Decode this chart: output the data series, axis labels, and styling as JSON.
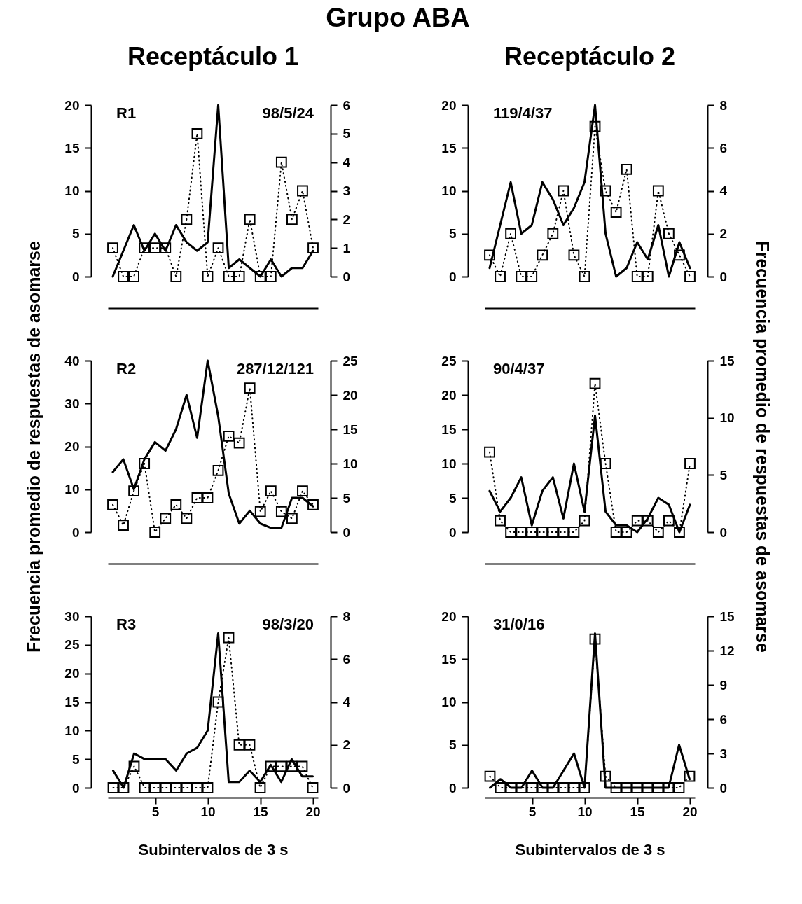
{
  "chart_data": [
    {
      "type": "line",
      "title": "Grupo ABA",
      "subtitle": "Receptáculo 1",
      "annotations": [
        "R1",
        "98/5/24"
      ],
      "x": [
        1,
        2,
        3,
        4,
        5,
        6,
        7,
        8,
        9,
        10,
        11,
        12,
        13,
        14,
        15,
        16,
        17,
        18,
        19,
        20
      ],
      "ylim": [
        0,
        20
      ],
      "yticks": [
        0,
        5,
        10,
        15,
        20
      ],
      "y2lim": [
        0,
        6
      ],
      "y2ticks": [
        0,
        1,
        2,
        3,
        4,
        5,
        6
      ],
      "tick_labels": "y",
      "series": [
        {
          "color": "#000000",
          "line_style": "solid",
          "marker": "none",
          "values": [
            0,
            3,
            6,
            3,
            5,
            3,
            6,
            4,
            3,
            4,
            20,
            1,
            2,
            1,
            0,
            2,
            0,
            1,
            1,
            3
          ]
        },
        {
          "axis": "y2",
          "color": "#000000",
          "line_style": "dotted",
          "marker": "square",
          "values": [
            1,
            0,
            0,
            1,
            1,
            1,
            0,
            2,
            5,
            0,
            1,
            0,
            0,
            2,
            0,
            0,
            4,
            2,
            3,
            1
          ]
        }
      ]
    },
    {
      "type": "line",
      "subtitle": "Receptáculo 2",
      "annotations": [
        "119/4/37"
      ],
      "x": [
        1,
        2,
        3,
        4,
        5,
        6,
        7,
        8,
        9,
        10,
        11,
        12,
        13,
        14,
        15,
        16,
        17,
        18,
        19,
        20
      ],
      "ylim": [
        0,
        20
      ],
      "yticks": [
        0,
        5,
        10,
        15,
        20
      ],
      "y2lim": [
        0,
        8
      ],
      "y2ticks": [
        0,
        2,
        4,
        6,
        8
      ],
      "tick_labels": "y",
      "series": [
        {
          "color": "#000000",
          "line_style": "solid",
          "marker": "none",
          "values": [
            1,
            6,
            11,
            5,
            6,
            11,
            9,
            6,
            8,
            11,
            20,
            5,
            0,
            1,
            4,
            2,
            6,
            0,
            4,
            1
          ]
        },
        {
          "axis": "y2",
          "color": "#000000",
          "line_style": "dotted",
          "marker": "square",
          "values": [
            1,
            0,
            2,
            0,
            0,
            1,
            2,
            4,
            1,
            0,
            7,
            4,
            3,
            5,
            0,
            0,
            4,
            2,
            1,
            0
          ]
        }
      ]
    },
    {
      "type": "line",
      "ylabel": "Frecuencia promedio de respuestas de asomarse",
      "annotations": [
        "R2",
        "287/12/121"
      ],
      "x": [
        1,
        2,
        3,
        4,
        5,
        6,
        7,
        8,
        9,
        10,
        11,
        12,
        13,
        14,
        15,
        16,
        17,
        18,
        19,
        20
      ],
      "ylim": [
        0,
        40
      ],
      "yticks": [
        0,
        10,
        20,
        30,
        40
      ],
      "y2lim": [
        0,
        25
      ],
      "y2ticks": [
        0,
        5,
        10,
        15,
        20,
        25
      ],
      "tick_labels": "y",
      "series": [
        {
          "color": "#000000",
          "line_style": "solid",
          "marker": "none",
          "values": [
            14,
            17,
            10,
            17,
            21,
            19,
            24,
            32,
            22,
            40,
            27,
            9,
            2,
            5,
            2,
            1,
            1,
            8,
            8,
            6
          ]
        },
        {
          "axis": "y2",
          "color": "#000000",
          "line_style": "dotted",
          "marker": "square",
          "values": [
            4,
            1,
            6,
            10,
            0,
            2,
            4,
            2,
            5,
            5,
            9,
            14,
            13,
            21,
            3,
            6,
            3,
            2,
            6,
            4
          ]
        }
      ]
    },
    {
      "type": "line",
      "y2label": "Frecuencia promedio de respuestas de asomarse",
      "annotations": [
        "90/4/37"
      ],
      "x": [
        1,
        2,
        3,
        4,
        5,
        6,
        7,
        8,
        9,
        10,
        11,
        12,
        13,
        14,
        15,
        16,
        17,
        18,
        19,
        20
      ],
      "ylim": [
        0,
        25
      ],
      "yticks": [
        0,
        5,
        10,
        15,
        20,
        25
      ],
      "y2lim": [
        0,
        15
      ],
      "y2ticks": [
        0,
        5,
        10,
        15
      ],
      "tick_labels": "y",
      "series": [
        {
          "color": "#000000",
          "line_style": "solid",
          "marker": "none",
          "values": [
            6,
            3,
            5,
            8,
            1,
            6,
            8,
            2,
            10,
            3,
            17,
            3,
            1,
            1,
            0,
            2,
            5,
            4,
            0,
            4
          ]
        },
        {
          "axis": "y2",
          "color": "#000000",
          "line_style": "dotted",
          "marker": "square",
          "values": [
            7,
            1,
            0,
            0,
            0,
            0,
            0,
            0,
            0,
            1,
            13,
            6,
            0,
            0,
            1,
            1,
            0,
            1,
            0,
            6
          ]
        }
      ]
    },
    {
      "type": "line",
      "xlabel": "Subintervalos de 3 s",
      "annotations": [
        "R3",
        "98/3/20"
      ],
      "x": [
        1,
        2,
        3,
        4,
        5,
        6,
        7,
        8,
        9,
        10,
        11,
        12,
        13,
        14,
        15,
        16,
        17,
        18,
        19,
        20
      ],
      "xlim": [
        0.5,
        20.5
      ],
      "xticks": [
        5,
        10,
        15,
        20
      ],
      "ylim": [
        0,
        30
      ],
      "yticks": [
        0,
        5,
        10,
        15,
        20,
        25,
        30
      ],
      "y2lim": [
        0,
        8
      ],
      "y2ticks": [
        0,
        2,
        4,
        6,
        8
      ],
      "series": [
        {
          "color": "#000000",
          "line_style": "solid",
          "marker": "none",
          "values": [
            3,
            0,
            6,
            5,
            5,
            5,
            3,
            6,
            7,
            10,
            27,
            1,
            1,
            3,
            1,
            4,
            1,
            5,
            2,
            2
          ]
        },
        {
          "axis": "y2",
          "color": "#000000",
          "line_style": "dotted",
          "marker": "square",
          "values": [
            0,
            0,
            1,
            0,
            0,
            0,
            0,
            0,
            0,
            0,
            4,
            7,
            2,
            2,
            0,
            1,
            1,
            1,
            1,
            0
          ]
        }
      ]
    },
    {
      "type": "line",
      "xlabel": "Subintervalos de 3 s",
      "annotations": [
        "31/0/16"
      ],
      "x": [
        1,
        2,
        3,
        4,
        5,
        6,
        7,
        8,
        9,
        10,
        11,
        12,
        13,
        14,
        15,
        16,
        17,
        18,
        19,
        20
      ],
      "xlim": [
        0.5,
        20.5
      ],
      "xticks": [
        5,
        10,
        15,
        20
      ],
      "ylim": [
        0,
        20
      ],
      "yticks": [
        0,
        5,
        10,
        15,
        20
      ],
      "y2lim": [
        0,
        15
      ],
      "y2ticks": [
        0,
        3,
        6,
        9,
        12,
        15
      ],
      "series": [
        {
          "color": "#000000",
          "line_style": "solid",
          "marker": "none",
          "values": [
            0,
            1,
            0,
            0,
            2,
            0,
            0,
            2,
            4,
            0,
            18,
            0,
            0,
            0,
            0,
            0,
            0,
            0,
            5,
            1
          ]
        },
        {
          "axis": "y2",
          "color": "#000000",
          "line_style": "dotted",
          "marker": "square",
          "values": [
            1,
            0,
            0,
            0,
            0,
            0,
            0,
            0,
            0,
            0,
            13,
            1,
            0,
            0,
            0,
            0,
            0,
            0,
            0,
            1
          ]
        }
      ]
    }
  ]
}
